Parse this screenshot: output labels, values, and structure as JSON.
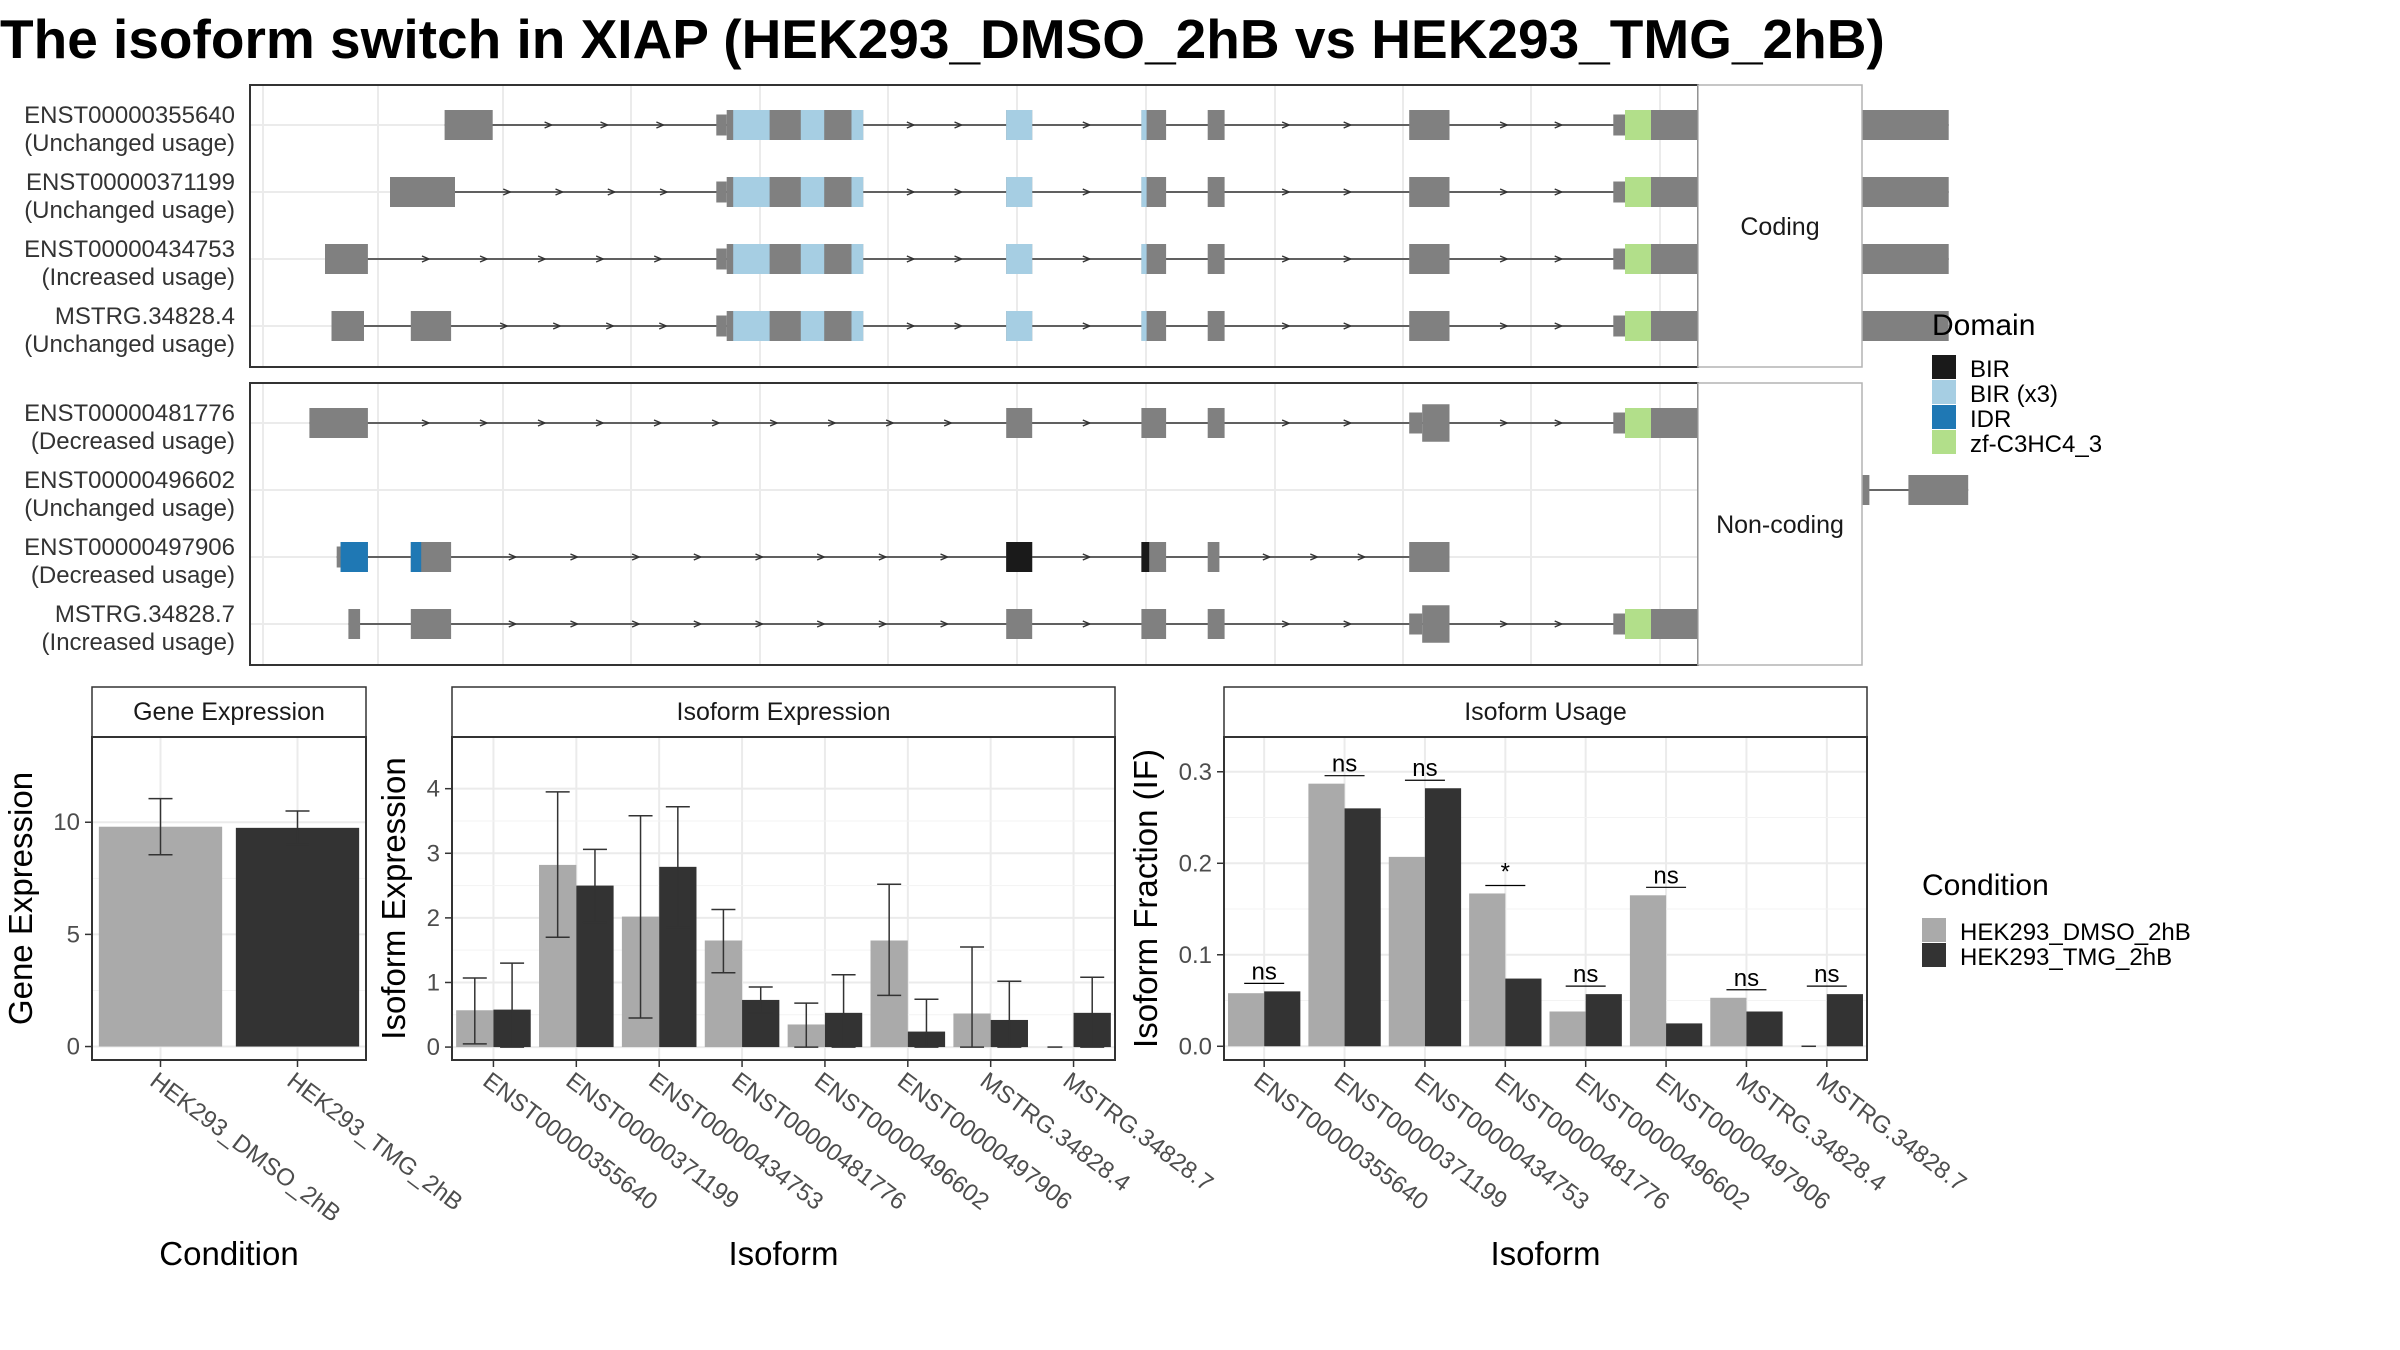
{
  "title": "The isoform switch in XIAP (HEK293_DMSO_2hB vs HEK293_TMG_2hB)",
  "colors": {
    "exon": "#808080",
    "BIR": "#1a1a1a",
    "BIR (x3)": "#a6cee3",
    "IDR": "#1f78b4",
    "zf-C3HC4_3": "#b2df8a",
    "DMSO": "#aaaaaa",
    "TMG": "#333333",
    "grid": "#ebebeb",
    "strip_bg": "#ffffff",
    "panel_border": "#333333"
  },
  "structure": {
    "coding_strip": "Coding",
    "noncoding_strip": "Non-coding",
    "coding": [
      {
        "id": "ENST00000355640",
        "usage": "(Unchanged usage)",
        "exons": [
          [
            0.092,
            0.129
          ],
          [
            0.301,
            0.309
          ],
          [
            0.309,
            0.414
          ],
          [
            0.524,
            0.544
          ],
          [
            0.628,
            0.647
          ],
          [
            0.679,
            0.692
          ],
          [
            0.834,
            0.865
          ],
          [
            0.991,
            1.0
          ],
          [
            1.0,
            1.249
          ]
        ],
        "domains": [
          {
            "type": "BIR (x3)",
            "start": 0.314,
            "end": 0.342
          },
          {
            "type": "BIR (x3)",
            "start": 0.366,
            "end": 0.384
          },
          {
            "type": "BIR (x3)",
            "start": 0.405,
            "end": 0.414
          },
          {
            "type": "BIR (x3)",
            "start": 0.524,
            "end": 0.544
          },
          {
            "type": "BIR (x3)",
            "start": 0.628,
            "end": 0.632
          },
          {
            "type": "zf-C3HC4_3",
            "start": 1.0,
            "end": 1.02
          }
        ]
      },
      {
        "id": "ENST00000371199",
        "usage": "(Unchanged usage)",
        "exons": [
          [
            0.05,
            0.1
          ],
          [
            0.301,
            0.309
          ],
          [
            0.309,
            0.414
          ],
          [
            0.524,
            0.544
          ],
          [
            0.628,
            0.647
          ],
          [
            0.679,
            0.692
          ],
          [
            0.834,
            0.865
          ],
          [
            0.991,
            1.0
          ],
          [
            1.0,
            1.249
          ]
        ],
        "domains": [
          {
            "type": "BIR (x3)",
            "start": 0.314,
            "end": 0.342
          },
          {
            "type": "BIR (x3)",
            "start": 0.366,
            "end": 0.384
          },
          {
            "type": "BIR (x3)",
            "start": 0.405,
            "end": 0.414
          },
          {
            "type": "BIR (x3)",
            "start": 0.524,
            "end": 0.544
          },
          {
            "type": "BIR (x3)",
            "start": 0.628,
            "end": 0.632
          },
          {
            "type": "zf-C3HC4_3",
            "start": 1.0,
            "end": 1.02
          }
        ]
      },
      {
        "id": "ENST00000434753",
        "usage": "(Increased usage)",
        "exons": [
          [
            0.0,
            0.033
          ],
          [
            0.301,
            0.309
          ],
          [
            0.309,
            0.414
          ],
          [
            0.524,
            0.544
          ],
          [
            0.628,
            0.647
          ],
          [
            0.679,
            0.692
          ],
          [
            0.834,
            0.865
          ],
          [
            0.991,
            1.0
          ],
          [
            1.0,
            1.249
          ]
        ],
        "domains": [
          {
            "type": "BIR (x3)",
            "start": 0.314,
            "end": 0.342
          },
          {
            "type": "BIR (x3)",
            "start": 0.366,
            "end": 0.384
          },
          {
            "type": "BIR (x3)",
            "start": 0.405,
            "end": 0.414
          },
          {
            "type": "BIR (x3)",
            "start": 0.524,
            "end": 0.544
          },
          {
            "type": "BIR (x3)",
            "start": 0.628,
            "end": 0.632
          },
          {
            "type": "zf-C3HC4_3",
            "start": 1.0,
            "end": 1.02
          }
        ]
      },
      {
        "id": "MSTRG.34828.4",
        "usage": "(Unchanged usage)",
        "exons": [
          [
            0.005,
            0.03
          ],
          [
            0.066,
            0.097
          ],
          [
            0.301,
            0.309
          ],
          [
            0.309,
            0.414
          ],
          [
            0.524,
            0.544
          ],
          [
            0.628,
            0.647
          ],
          [
            0.679,
            0.692
          ],
          [
            0.834,
            0.865
          ],
          [
            0.991,
            1.0
          ],
          [
            1.0,
            1.249
          ]
        ],
        "domains": [
          {
            "type": "BIR (x3)",
            "start": 0.314,
            "end": 0.342
          },
          {
            "type": "BIR (x3)",
            "start": 0.366,
            "end": 0.384
          },
          {
            "type": "BIR (x3)",
            "start": 0.405,
            "end": 0.414
          },
          {
            "type": "BIR (x3)",
            "start": 0.524,
            "end": 0.544
          },
          {
            "type": "BIR (x3)",
            "start": 0.628,
            "end": 0.632
          },
          {
            "type": "zf-C3HC4_3",
            "start": 1.0,
            "end": 1.02
          }
        ]
      }
    ],
    "noncoding": [
      {
        "id": "ENST00000481776",
        "usage": "(Decreased usage)",
        "exons": [
          [
            -0.012,
            0.033
          ],
          [
            0.524,
            0.544
          ],
          [
            0.628,
            0.647
          ],
          [
            0.679,
            0.692
          ],
          [
            0.834,
            0.844
          ],
          [
            0.844,
            0.865
          ],
          [
            0.991,
            1.0
          ],
          [
            1.0,
            1.147
          ]
        ],
        "domains": [
          {
            "type": "zf-C3HC4_3",
            "start": 1.0,
            "end": 1.02
          }
        ]
      },
      {
        "id": "ENST00000496602",
        "usage": "(Unchanged usage)",
        "exons": [
          [
            1.16,
            1.188
          ],
          [
            1.218,
            1.264
          ]
        ],
        "domains": []
      },
      {
        "id": "ENST00000497906",
        "usage": "(Decreased usage)",
        "exons": [
          [
            0.009,
            0.012
          ],
          [
            0.012,
            0.033
          ],
          [
            0.066,
            0.097
          ],
          [
            0.524,
            0.544
          ],
          [
            0.628,
            0.647
          ],
          [
            0.679,
            0.688
          ],
          [
            0.834,
            0.865
          ]
        ],
        "domains": [
          {
            "type": "IDR",
            "start": 0.012,
            "end": 0.033
          },
          {
            "type": "IDR",
            "start": 0.066,
            "end": 0.074
          },
          {
            "type": "BIR",
            "start": 0.524,
            "end": 0.544
          },
          {
            "type": "BIR",
            "start": 0.628,
            "end": 0.634
          }
        ]
      },
      {
        "id": "MSTRG.34828.7",
        "usage": "(Increased usage)",
        "exons": [
          [
            0.018,
            0.027
          ],
          [
            0.066,
            0.097
          ],
          [
            0.524,
            0.544
          ],
          [
            0.628,
            0.647
          ],
          [
            0.679,
            0.692
          ],
          [
            0.834,
            0.844
          ],
          [
            0.844,
            0.865
          ],
          [
            0.991,
            1.0
          ],
          [
            1.0,
            1.147
          ]
        ],
        "domains": [
          {
            "type": "zf-C3HC4_3",
            "start": 1.0,
            "end": 1.02
          }
        ]
      }
    ]
  },
  "legends": {
    "domain": {
      "title": "Domain",
      "items": [
        "BIR",
        "BIR (x3)",
        "IDR",
        "zf-C3HC4_3"
      ]
    },
    "condition": {
      "title": "Condition",
      "items": [
        "HEK293_DMSO_2hB",
        "HEK293_TMG_2hB"
      ]
    }
  },
  "chart_data": [
    {
      "type": "bar",
      "title": "Gene Expression",
      "xlabel": "Condition",
      "ylabel": "Gene Expression",
      "ylim": [
        -0.6,
        13.8
      ],
      "yticks": [
        0,
        5,
        10
      ],
      "categories": [
        "HEK293_DMSO_2hB",
        "HEK293_TMG_2hB"
      ],
      "values": [
        9.8,
        9.75
      ],
      "err_low": [
        8.55,
        9.0
      ],
      "err_high": [
        11.05,
        10.5
      ]
    },
    {
      "type": "bar",
      "title": "Isoform Expression",
      "xlabel": "Isoform",
      "ylabel": "Isoform Expression",
      "ylim": [
        -0.2,
        4.8
      ],
      "yticks": [
        0,
        1,
        2,
        3,
        4
      ],
      "categories": [
        "ENST00000355640",
        "ENST00000371199",
        "ENST00000434753",
        "ENST00000481776",
        "ENST00000496602",
        "ENST00000497906",
        "MSTRG.34828.4",
        "MSTRG.34828.7"
      ],
      "series": [
        {
          "name": "HEK293_DMSO_2hB",
          "values": [
            0.57,
            2.82,
            2.02,
            1.65,
            0.35,
            1.65,
            0.52,
            0.0
          ],
          "err_low": [
            0.05,
            1.7,
            0.45,
            1.15,
            0.0,
            0.8,
            0.0,
            null
          ],
          "err_high": [
            1.07,
            3.95,
            3.58,
            2.13,
            0.68,
            2.52,
            1.55,
            null
          ]
        },
        {
          "name": "HEK293_TMG_2hB",
          "values": [
            0.58,
            2.5,
            2.79,
            0.73,
            0.53,
            0.24,
            0.42,
            0.53
          ],
          "err_low": [
            0.0,
            1.93,
            1.85,
            0.53,
            0.0,
            0.0,
            0.0,
            0.0
          ],
          "err_high": [
            1.3,
            3.06,
            3.72,
            0.93,
            1.12,
            0.74,
            1.02,
            1.08
          ]
        }
      ]
    },
    {
      "type": "bar",
      "title": "Isoform Usage",
      "xlabel": "Isoform",
      "ylabel": "Isoform Fraction (IF)",
      "ylim": [
        -0.015,
        0.338
      ],
      "yticks": [
        0.0,
        0.1,
        0.2,
        0.3
      ],
      "ytick_labels": [
        "0.0",
        "0.1",
        "0.2",
        "0.3"
      ],
      "categories": [
        "ENST00000355640",
        "ENST00000371199",
        "ENST00000434753",
        "ENST00000481776",
        "ENST00000496602",
        "ENST00000497906",
        "MSTRG.34828.4",
        "MSTRG.34828.7"
      ],
      "series": [
        {
          "name": "HEK293_DMSO_2hB",
          "values": [
            0.058,
            0.287,
            0.207,
            0.167,
            0.038,
            0.165,
            0.053,
            0.0
          ]
        },
        {
          "name": "HEK293_TMG_2hB",
          "values": [
            0.06,
            0.26,
            0.282,
            0.074,
            0.057,
            0.025,
            0.038,
            0.057
          ]
        }
      ],
      "significance": [
        "ns",
        "ns",
        "ns",
        "*",
        "ns",
        "ns",
        "ns",
        "ns"
      ]
    }
  ]
}
